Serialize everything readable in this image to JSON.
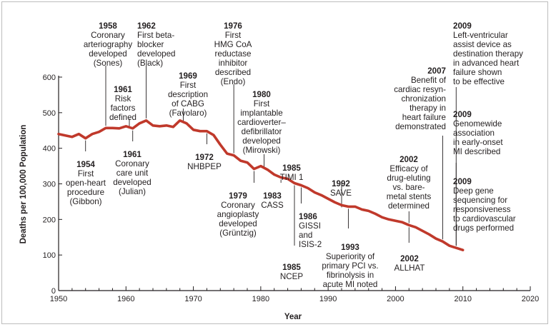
{
  "chart_data": {
    "type": "line",
    "title": "",
    "xlabel": "Year",
    "ylabel": "Deaths per 100,000 Population",
    "xlim": [
      1950,
      2020
    ],
    "ylim": [
      0,
      600
    ],
    "x_ticks": [
      "1950",
      "1960",
      "1970",
      "1980",
      "1990",
      "2000",
      "2010",
      "2020"
    ],
    "y_ticks": [
      "0",
      "100",
      "200",
      "300",
      "400",
      "500",
      "600"
    ],
    "grid": false,
    "line_color": "#c0392b",
    "series": [
      {
        "x": [
          1950,
          1951,
          1952,
          1953,
          1954,
          1955,
          1956,
          1957,
          1958,
          1959,
          1960,
          1961,
          1962,
          1963,
          1964,
          1965,
          1966,
          1967,
          1968,
          1969,
          1970,
          1971,
          1972,
          1973,
          1974,
          1975,
          1976,
          1977,
          1978,
          1979,
          1980,
          1981,
          1982,
          1983,
          1984,
          1985,
          1986,
          1987,
          1988,
          1989,
          1990,
          1991,
          1992,
          1993,
          1994,
          1995,
          1996,
          1997,
          1998,
          1999,
          2000,
          2001,
          2002,
          2003,
          2004,
          2005,
          2006,
          2007,
          2008,
          2009,
          2010
        ],
        "values": [
          440,
          436,
          432,
          440,
          428,
          440,
          446,
          457,
          457,
          456,
          462,
          456,
          470,
          478,
          464,
          462,
          464,
          460,
          478,
          470,
          452,
          448,
          448,
          437,
          410,
          385,
          380,
          365,
          360,
          342,
          350,
          340,
          326,
          318,
          314,
          302,
          296,
          288,
          276,
          268,
          258,
          248,
          240,
          236,
          236,
          228,
          224,
          216,
          206,
          200,
          196,
          192,
          184,
          178,
          168,
          158,
          146,
          138,
          126,
          120,
          114
        ]
      }
    ],
    "annotations": [
      {
        "year": "1954",
        "text": "First\nopen-heart\nprocedure\n(Gibbon)"
      },
      {
        "year": "1958",
        "text": "Coronary\narteriography\ndeveloped\n(Sones)"
      },
      {
        "year": "1961",
        "text": "Risk\nfactors\ndefined"
      },
      {
        "year": "1961",
        "text": "Coronary\ncare unit\ndeveloped\n(Julian)"
      },
      {
        "year": "1962",
        "text": "First beta-\nblocker\ndeveloped\n(Black)"
      },
      {
        "year": "1969",
        "text": "First\ndescription\nof CABG\n(Favolaro)"
      },
      {
        "year": "1972",
        "text": "NHBPEP"
      },
      {
        "year": "1976",
        "text": "First\nHMG CoA\nreductase\ninhibitor\ndescribed\n(Endo)"
      },
      {
        "year": "1979",
        "text": "Coronary\nangioplasty\ndeveloped\n(Grüntzig)"
      },
      {
        "year": "1980",
        "text": "First\nimplantable\ncardioverter–\ndefibrillator\ndeveloped\n(Mirowski)"
      },
      {
        "year": "1983",
        "text": "CASS"
      },
      {
        "year": "1985",
        "text": "TIMI 1"
      },
      {
        "year": "1985",
        "text": "NCEP"
      },
      {
        "year": "1986",
        "text": "GISSI\nand\nISIS-2"
      },
      {
        "year": "1992",
        "text": "SAVE"
      },
      {
        "year": "1993",
        "text": "Superiority of\nprimary PCI vs.\nfibrinolysis in\nacute MI noted"
      },
      {
        "year": "2002",
        "text": "Efficacy of\ndrug-eluting\nvs. bare-\nmetal stents\ndetermined"
      },
      {
        "year": "2002",
        "text": "ALLHAT"
      },
      {
        "year": "2007",
        "text": "Benefit of\ncardiac resyn-\nchronization\ntherapy in\nheart failure\ndemonstrated"
      },
      {
        "year": "2009",
        "text": "Left-ventricular\nassist device as\ndestination therapy\nin advanced heart\nfailure shown\nto be effective"
      },
      {
        "year": "2009",
        "text": "Genomewide\nassociation\nin early-onset\nMI described"
      },
      {
        "year": "2009",
        "text": "Deep gene\nsequencing for\nresponsiveness\nto cardiovascular\ndrugs performed"
      }
    ]
  }
}
